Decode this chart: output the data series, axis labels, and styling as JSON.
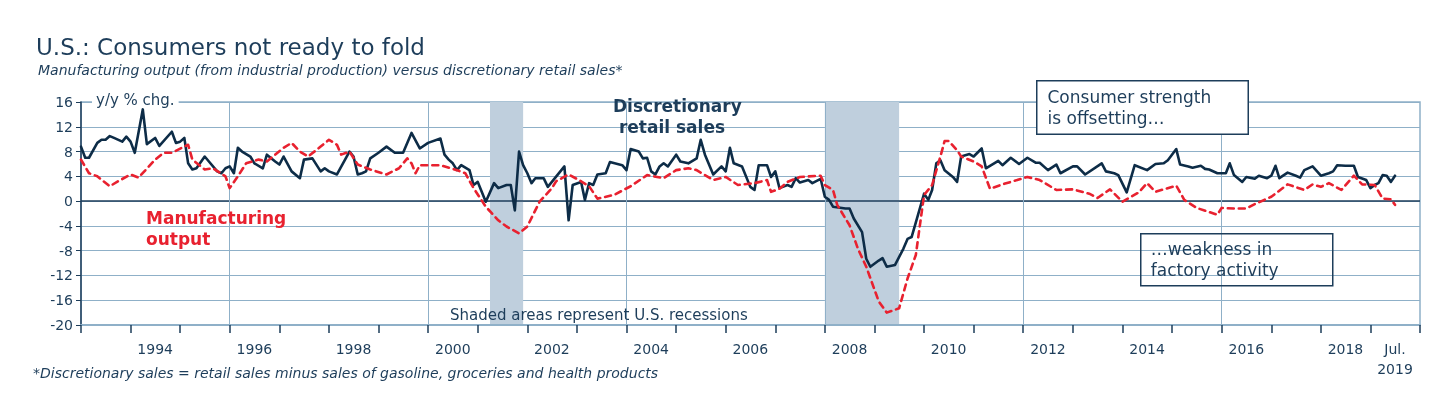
{
  "chart_data": {
    "type": "line",
    "title": "U.S.: Consumers not ready to fold",
    "subtitle": "Manufacturing output (from industrial production) versus discretionary retail sales*",
    "ylabel": "y/y % chg.",
    "annotations": [
      "Consumer strength is offsetting…",
      "…weakness in factory activity",
      "Shaded areas represent U.S. recessions",
      "*Discretionary sales = retail sales minus sales of gasoline, groceries and health products"
    ],
    "xlim": [
      "1993-01",
      "2020-01"
    ],
    "xticks": [
      {
        "value": "1993-01",
        "label": null
      },
      {
        "value": "1994-01",
        "label": null
      },
      {
        "value": "1994-07",
        "label": "1994"
      },
      {
        "value": "1995-01",
        "label": null
      },
      {
        "value": "1996-01",
        "label": null
      },
      {
        "value": "1996-07",
        "label": "1996"
      },
      {
        "value": "1997-01",
        "label": null
      },
      {
        "value": "1998-01",
        "label": null
      },
      {
        "value": "1998-07",
        "label": "1998"
      },
      {
        "value": "1999-01",
        "label": null
      },
      {
        "value": "2000-01",
        "label": null
      },
      {
        "value": "2000-07",
        "label": "2000"
      },
      {
        "value": "2001-01",
        "label": null
      },
      {
        "value": "2002-01",
        "label": null
      },
      {
        "value": "2002-07",
        "label": "2002"
      },
      {
        "value": "2003-01",
        "label": null
      },
      {
        "value": "2004-01",
        "label": null
      },
      {
        "value": "2004-07",
        "label": "2004"
      },
      {
        "value": "2005-01",
        "label": null
      },
      {
        "value": "2006-01",
        "label": null
      },
      {
        "value": "2006-07",
        "label": "2006"
      },
      {
        "value": "2007-01",
        "label": null
      },
      {
        "value": "2008-01",
        "label": null
      },
      {
        "value": "2008-07",
        "label": "2008"
      },
      {
        "value": "2009-01",
        "label": null
      },
      {
        "value": "2010-01",
        "label": null
      },
      {
        "value": "2010-07",
        "label": "2010"
      },
      {
        "value": "2011-01",
        "label": null
      },
      {
        "value": "2012-01",
        "label": null
      },
      {
        "value": "2012-07",
        "label": "2012"
      },
      {
        "value": "2013-01",
        "label": null
      },
      {
        "value": "2014-01",
        "label": null
      },
      {
        "value": "2014-07",
        "label": "2014"
      },
      {
        "value": "2015-01",
        "label": null
      },
      {
        "value": "2016-01",
        "label": null
      },
      {
        "value": "2016-07",
        "label": "2016"
      },
      {
        "value": "2017-01",
        "label": null
      },
      {
        "value": "2018-01",
        "label": null
      },
      {
        "value": "2018-07",
        "label": "2018"
      },
      {
        "value": "2019-01",
        "label": null
      },
      {
        "value": "2019-07",
        "label": "Jul.\n2019"
      },
      {
        "value": "2020-01",
        "label": null
      }
    ],
    "ylim": [
      -20,
      16
    ],
    "yticks": [
      -20,
      -16,
      -12,
      -8,
      -4,
      0,
      4,
      8,
      12,
      16
    ],
    "grid": "y",
    "ref_lines": [
      {
        "axis": "y",
        "value": 0,
        "color": "#1d3d5a"
      },
      {
        "axis": "x",
        "value": "1996-01",
        "color": "#8fb0c8"
      },
      {
        "axis": "x",
        "value": "2000-01",
        "color": "#8fb0c8"
      },
      {
        "axis": "x",
        "value": "2004-01",
        "color": "#8fb0c8"
      },
      {
        "axis": "x",
        "value": "2008-01",
        "color": "#8fb0c8"
      },
      {
        "axis": "x",
        "value": "2012-01",
        "color": "#8fb0c8"
      },
      {
        "axis": "x",
        "value": "2016-01",
        "color": "#8fb0c8"
      }
    ],
    "bands": [
      {
        "axis": "x",
        "from": "2001-04",
        "to": "2001-12",
        "color": "#bfcfdd"
      },
      {
        "axis": "x",
        "from": "2008-01",
        "to": "2009-07",
        "color": "#bfcfdd"
      }
    ],
    "series": [
      {
        "name": "Discretionary retail sales",
        "color": "#0d2c47",
        "line_style": "solid",
        "x": [
          "1993-01",
          "1993-02",
          "1993-03",
          "1993-05",
          "1993-06",
          "1993-07",
          "1993-08",
          "1993-09",
          "1993-11",
          "1993-12",
          "1994-01",
          "1994-02",
          "1994-04",
          "1994-05",
          "1994-07",
          "1994-08",
          "1994-11",
          "1994-12",
          "1995-01",
          "1995-02",
          "1995-03",
          "1995-04",
          "1995-05",
          "1995-07",
          "1995-08",
          "1995-10",
          "1995-11",
          "1995-12",
          "1996-01",
          "1996-02",
          "1996-03",
          "1996-04",
          "1996-06",
          "1996-07",
          "1996-09",
          "1996-10",
          "1996-12",
          "1997-01",
          "1997-02",
          "1997-04",
          "1997-06",
          "1997-07",
          "1997-09",
          "1997-11",
          "1997-12",
          "1998-01",
          "1998-03",
          "1998-06",
          "1998-07",
          "1998-08",
          "1998-09",
          "1998-10",
          "1998-11",
          "1999-01",
          "1999-03",
          "1999-05",
          "1999-07",
          "1999-09",
          "1999-11",
          "2000-01",
          "2000-04",
          "2000-05",
          "2000-06",
          "2000-07",
          "2000-08",
          "2000-09",
          "2000-11",
          "2000-12",
          "2001-01",
          "2001-03",
          "2001-05",
          "2001-06",
          "2001-08",
          "2001-09",
          "2001-10",
          "2001-11",
          "2001-12",
          "2002-01",
          "2002-02",
          "2002-03",
          "2002-05",
          "2002-06",
          "2002-10",
          "2002-11",
          "2002-12",
          "2003-02",
          "2003-03",
          "2003-04",
          "2003-05",
          "2003-06",
          "2003-08",
          "2003-09",
          "2003-12",
          "2004-01",
          "2004-02",
          "2004-04",
          "2004-05",
          "2004-06",
          "2004-07",
          "2004-08",
          "2004-09",
          "2004-10",
          "2004-11",
          "2005-01",
          "2005-02",
          "2005-04",
          "2005-06",
          "2005-07",
          "2005-08",
          "2005-10",
          "2005-12",
          "2006-01",
          "2006-02",
          "2006-03",
          "2006-05",
          "2006-07",
          "2006-08",
          "2006-09",
          "2006-11",
          "2006-12",
          "2007-01",
          "2007-02",
          "2007-04",
          "2007-05",
          "2007-06",
          "2007-07",
          "2007-09",
          "2007-10",
          "2007-12",
          "2008-01",
          "2008-02",
          "2008-03",
          "2008-06",
          "2008-07",
          "2008-08",
          "2008-10",
          "2008-11",
          "2008-12",
          "2009-02",
          "2009-03",
          "2009-04",
          "2009-06",
          "2009-08",
          "2009-09",
          "2009-10",
          "2010-01",
          "2010-02",
          "2010-03",
          "2010-04",
          "2010-05",
          "2010-06",
          "2010-08",
          "2010-09",
          "2010-10",
          "2010-12",
          "2011-01",
          "2011-03",
          "2011-04",
          "2011-07",
          "2011-08",
          "2011-10",
          "2011-12",
          "2012-02",
          "2012-04",
          "2012-05",
          "2012-07",
          "2012-09",
          "2012-10",
          "2013-01",
          "2013-02",
          "2013-04",
          "2013-08",
          "2013-09",
          "2013-11",
          "2013-12",
          "2014-02",
          "2014-04",
          "2014-07",
          "2014-09",
          "2014-11",
          "2014-12",
          "2015-02",
          "2015-03",
          "2015-05",
          "2015-06",
          "2015-08",
          "2015-09",
          "2015-10",
          "2015-12",
          "2016-02",
          "2016-03",
          "2016-04",
          "2016-06",
          "2016-07",
          "2016-09",
          "2016-10",
          "2016-12",
          "2017-01",
          "2017-02",
          "2017-03",
          "2017-05",
          "2017-07",
          "2017-08",
          "2017-09",
          "2017-11",
          "2018-01",
          "2018-03",
          "2018-04",
          "2018-05",
          "2018-07",
          "2018-09",
          "2018-10",
          "2018-12",
          "2019-01",
          "2019-02",
          "2019-03",
          "2019-04",
          "2019-05",
          "2019-06",
          "2019-07"
        ],
        "values": [
          8.8,
          7.0,
          7.0,
          9.4,
          9.9,
          9.9,
          10.5,
          10.2,
          9.6,
          10.4,
          9.6,
          7.8,
          14.8,
          9.2,
          10.2,
          8.9,
          11.2,
          9.4,
          9.6,
          10.2,
          6.1,
          5.1,
          5.3,
          7.2,
          6.4,
          4.8,
          4.5,
          5.3,
          5.6,
          4.5,
          8.6,
          8.0,
          7.2,
          6.1,
          5.3,
          7.5,
          6.4,
          5.9,
          7.2,
          4.8,
          3.7,
          6.7,
          6.9,
          4.8,
          5.3,
          4.8,
          4.3,
          8.0,
          7.2,
          4.3,
          4.5,
          4.8,
          6.9,
          7.8,
          8.8,
          7.8,
          7.8,
          11.0,
          8.5,
          9.4,
          10.1,
          7.5,
          6.7,
          6.1,
          5.0,
          5.8,
          5.0,
          2.6,
          3.1,
          -0.1,
          2.9,
          2.1,
          2.6,
          2.6,
          -1.5,
          8.0,
          5.8,
          4.5,
          2.9,
          3.7,
          3.7,
          2.3,
          5.6,
          -3.1,
          2.6,
          3.1,
          0.2,
          2.9,
          2.6,
          4.3,
          4.5,
          6.3,
          5.8,
          5.0,
          8.4,
          8.0,
          6.9,
          7.0,
          4.8,
          4.3,
          5.6,
          6.1,
          5.6,
          7.5,
          6.4,
          6.1,
          6.9,
          9.9,
          7.5,
          4.3,
          5.6,
          4.8,
          8.6,
          6.1,
          5.6,
          2.3,
          1.8,
          5.8,
          5.8,
          3.9,
          4.8,
          2.1,
          2.6,
          2.3,
          3.7,
          3.0,
          3.4,
          2.9,
          3.6,
          0.7,
          0.2,
          -0.9,
          -1.2,
          -1.2,
          -2.8,
          -5.0,
          -9.3,
          -10.6,
          -9.6,
          -9.2,
          -10.6,
          -10.3,
          -7.7,
          -6.1,
          -5.8,
          1.2,
          0.2,
          1.8,
          6.1,
          6.6,
          5.0,
          3.9,
          3.1,
          7.2,
          7.6,
          7.2,
          8.5,
          5.3,
          6.5,
          5.8,
          7.0,
          6.0,
          7.0,
          6.2,
          6.2,
          5.0,
          5.9,
          4.5,
          5.6,
          5.6,
          4.3,
          6.1,
          4.8,
          4.5,
          4.2,
          1.4,
          5.8,
          5.0,
          6.0,
          6.1,
          6.6,
          8.4,
          5.9,
          5.6,
          5.4,
          5.7,
          5.2,
          5.1,
          4.5,
          4.5,
          6.1,
          4.2,
          3.1,
          3.9,
          3.6,
          4.1,
          3.7,
          4.1,
          5.7,
          3.7,
          4.6,
          4.1,
          3.8,
          5.0,
          5.6,
          4.1,
          4.5,
          4.8,
          5.8,
          5.7,
          5.7,
          3.9,
          3.4,
          2.1,
          2.6,
          2.9,
          4.2,
          4.1,
          3.1,
          4.1
        ]
      },
      {
        "name": "Manufacturing output",
        "color": "#e8212f",
        "line_style": "dashed",
        "x": [
          "1993-01",
          "1993-03",
          "1993-05",
          "1993-08",
          "1993-10",
          "1994-01",
          "1994-03",
          "1994-07",
          "1994-09",
          "1994-11",
          "1995-03",
          "1995-04",
          "1995-07",
          "1995-09",
          "1995-12",
          "1996-01",
          "1996-03",
          "1996-05",
          "1996-08",
          "1996-10",
          "1997-02",
          "1997-04",
          "1997-06",
          "1997-08",
          "1997-11",
          "1998-01",
          "1998-03",
          "1998-04",
          "1998-06",
          "1998-08",
          "1998-11",
          "1999-03",
          "1999-06",
          "1999-08",
          "1999-09",
          "1999-10",
          "1999-11",
          "2000-04",
          "2000-08",
          "2000-10",
          "2000-12",
          "2001-03",
          "2001-06",
          "2001-08",
          "2001-11",
          "2002-01",
          "2002-04",
          "2002-07",
          "2002-08",
          "2002-11",
          "2003-02",
          "2003-04",
          "2003-06",
          "2003-10",
          "2004-02",
          "2004-06",
          "2004-10",
          "2005-01",
          "2005-04",
          "2005-06",
          "2005-10",
          "2006-01",
          "2006-04",
          "2006-08",
          "2006-11",
          "2006-12",
          "2007-02",
          "2007-04",
          "2007-07",
          "2007-12",
          "2008-01",
          "2008-03",
          "2008-04",
          "2008-07",
          "2008-09",
          "2008-11",
          "2009-02",
          "2009-04",
          "2009-07",
          "2009-09",
          "2009-11",
          "2009-12",
          "2010-01",
          "2010-03",
          "2010-05",
          "2010-06",
          "2010-07",
          "2010-09",
          "2010-10",
          "2011-01",
          "2011-03",
          "2011-05",
          "2011-08",
          "2012-02",
          "2012-05",
          "2012-09",
          "2013-01",
          "2013-05",
          "2013-07",
          "2013-10",
          "2014-01",
          "2014-05",
          "2014-07",
          "2014-09",
          "2015-02",
          "2015-04",
          "2015-07",
          "2015-12",
          "2016-01",
          "2016-04",
          "2016-07",
          "2016-09",
          "2017-01",
          "2017-05",
          "2017-09",
          "2017-11",
          "2018-01",
          "2018-03",
          "2018-06",
          "2018-09",
          "2018-11",
          "2019-02",
          "2019-04",
          "2019-06",
          "2019-07"
        ],
        "values": [
          6.7,
          4.5,
          4.0,
          2.4,
          3.2,
          4.3,
          3.8,
          6.7,
          7.8,
          7.8,
          9.1,
          6.7,
          5.1,
          5.3,
          4.0,
          2.1,
          4.0,
          6.1,
          6.7,
          6.4,
          8.6,
          9.4,
          8.0,
          7.2,
          8.8,
          9.9,
          9.1,
          7.5,
          8.0,
          5.9,
          5.1,
          4.3,
          5.3,
          6.9,
          6.1,
          4.5,
          5.8,
          5.8,
          5.0,
          4.5,
          2.1,
          -0.9,
          -3.1,
          -4.1,
          -5.2,
          -4.1,
          -0.1,
          2.1,
          3.2,
          4.3,
          3.2,
          2.4,
          0.4,
          1.0,
          2.4,
          4.2,
          3.7,
          5.0,
          5.3,
          5.0,
          3.4,
          3.9,
          2.6,
          2.9,
          3.4,
          1.5,
          2.0,
          3.1,
          3.9,
          4.1,
          2.6,
          1.8,
          -0.6,
          -3.9,
          -7.7,
          -10.6,
          -16.2,
          -18.0,
          -17.3,
          -12.5,
          -8.7,
          -3.9,
          1.0,
          2.6,
          7.2,
          9.7,
          9.7,
          8.2,
          7.2,
          6.4,
          5.6,
          2.0,
          2.7,
          3.9,
          3.4,
          1.8,
          1.9,
          1.2,
          0.5,
          1.9,
          -0.1,
          1.4,
          2.9,
          1.5,
          2.5,
          0.2,
          -1.1,
          -2.2,
          -1.1,
          -1.2,
          -1.2,
          -0.5,
          0.7,
          2.7,
          1.8,
          2.7,
          2.3,
          2.9,
          1.8,
          4.1,
          2.7,
          2.6,
          0.4,
          0.3,
          -0.6
        ]
      }
    ]
  }
}
